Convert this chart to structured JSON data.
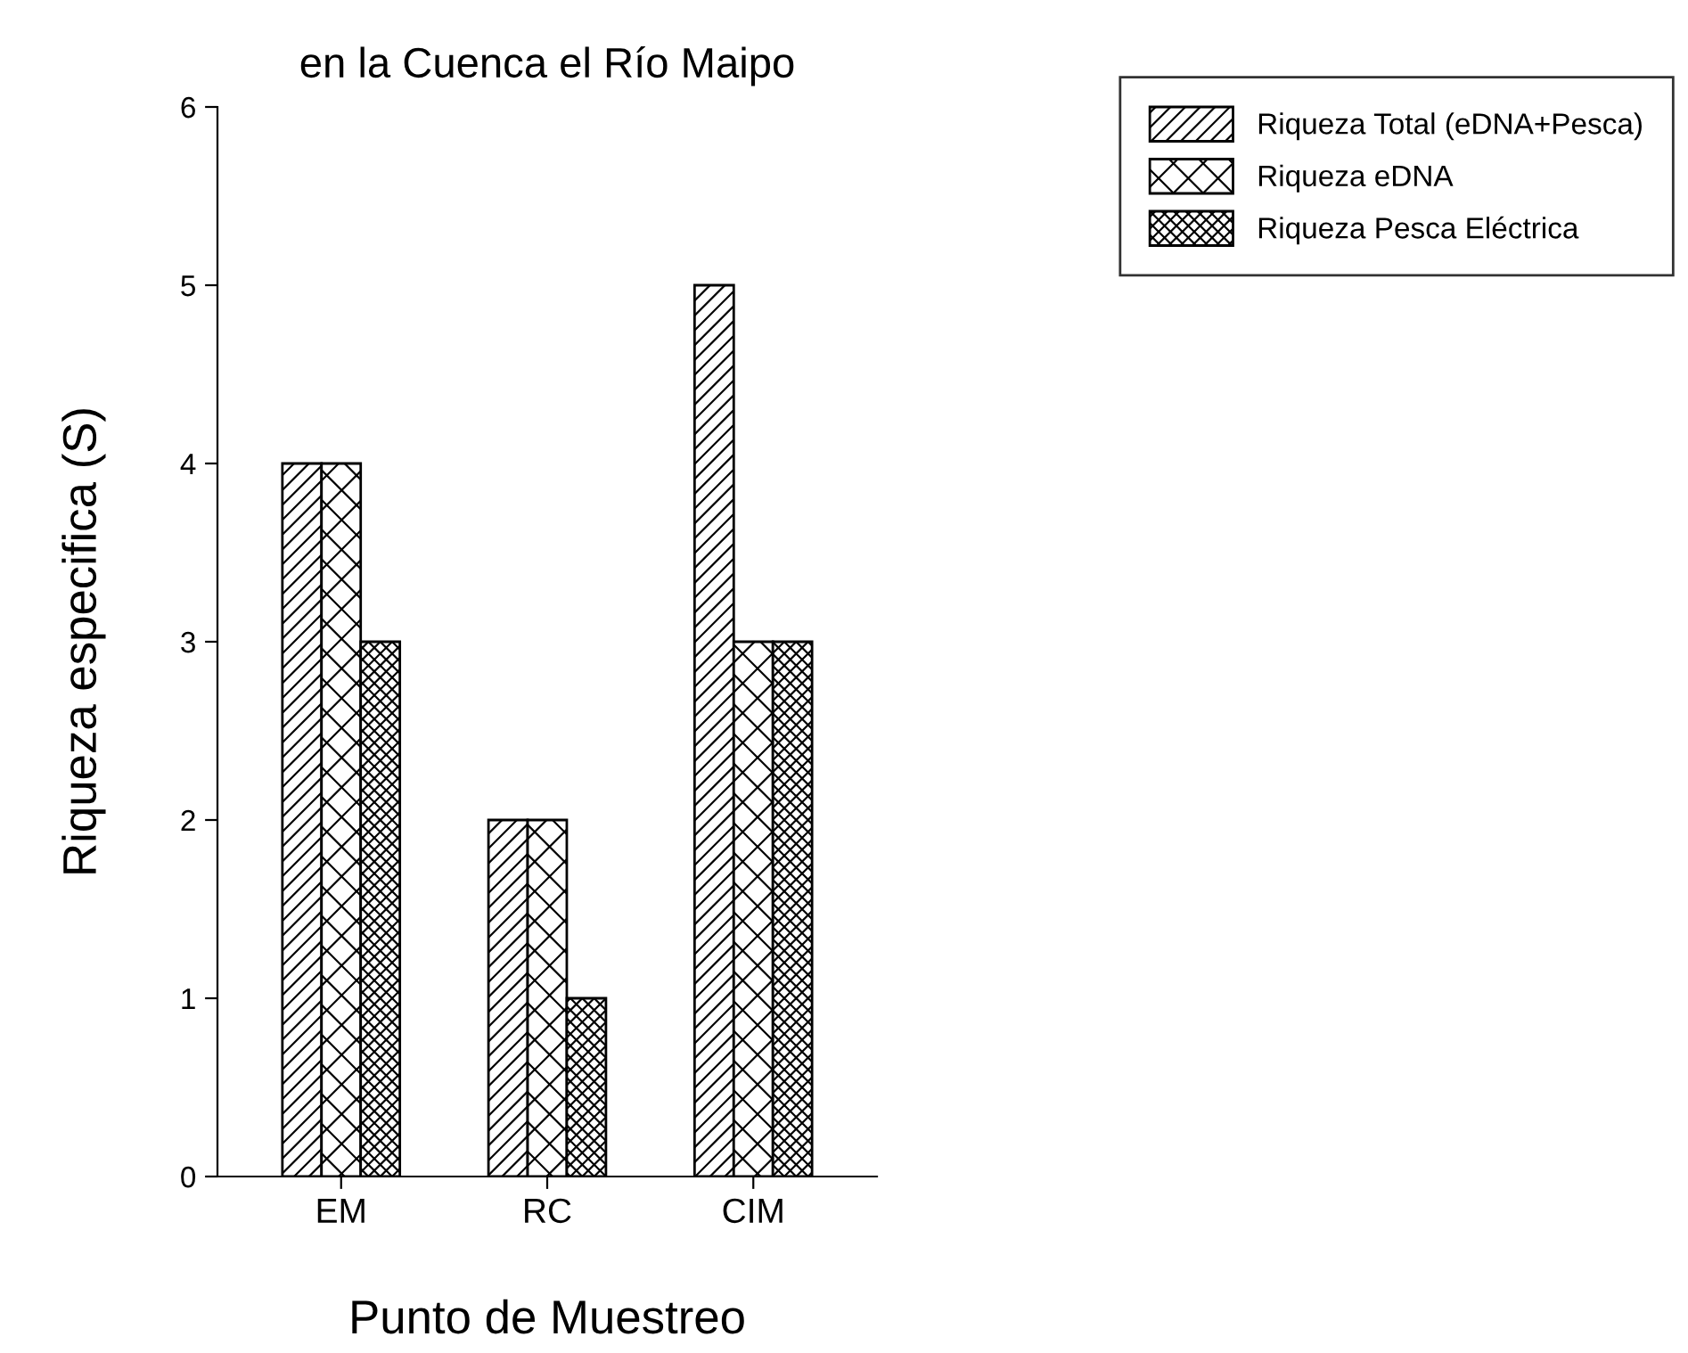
{
  "chart_data": {
    "type": "bar",
    "title": "en la Cuenca el Río Maipo",
    "xlabel": "Punto de Muestreo",
    "ylabel": "Riqueza especifica (S)",
    "categories": [
      "EM",
      "RC",
      "CIM"
    ],
    "series": [
      {
        "name": "Riqueza Total (eDNA+Pesca)",
        "color": "#000000",
        "values": [
          4,
          2,
          5
        ]
      },
      {
        "name": "Riqueza eDNA",
        "color": "#000000",
        "values": [
          4,
          2,
          3
        ]
      },
      {
        "name": "Riqueza Pesca Eléctrica",
        "color": "#000000",
        "values": [
          3,
          1,
          3
        ]
      }
    ],
    "ylim": [
      0,
      6
    ],
    "yticks": [
      0,
      1,
      2,
      3,
      4,
      5,
      6
    ],
    "grid": false,
    "legend": "top right"
  }
}
